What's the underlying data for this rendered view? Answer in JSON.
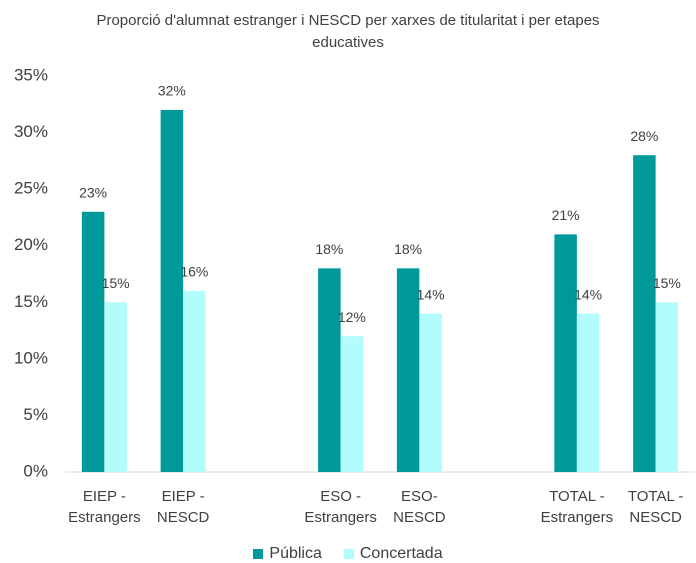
{
  "chart_data": {
    "type": "bar",
    "title": "Proporció d'alumnat estranger i NESCD per xarxes de titularitat i per etapes educatives",
    "categories": [
      "EIEP -\nEstrangers",
      "EIEP -\nNESCD",
      null,
      "ESO -\nEstrangers",
      "ESO-\nNESCD",
      null,
      "TOTAL -\nEstrangers",
      "TOTAL -\nNESCD"
    ],
    "series": [
      {
        "name": "Pública",
        "color": "#009999",
        "values": [
          23,
          32,
          null,
          18,
          18,
          null,
          21,
          28
        ],
        "value_labels": [
          "23%",
          "32%",
          null,
          "18%",
          "18%",
          null,
          "21%",
          "28%"
        ]
      },
      {
        "name": "Concertada",
        "color": "#b3fcfc",
        "values": [
          15,
          16,
          null,
          12,
          14,
          null,
          14,
          15
        ],
        "value_labels": [
          "15%",
          "16%",
          null,
          "12%",
          "14%",
          null,
          "14%",
          "15%"
        ]
      }
    ],
    "ylim": [
      0,
      35
    ],
    "yticks": [
      {
        "value": 0,
        "label": "0%"
      },
      {
        "value": 5,
        "label": "5%"
      },
      {
        "value": 10,
        "label": "10%"
      },
      {
        "value": 15,
        "label": "15%"
      },
      {
        "value": 20,
        "label": "20%"
      },
      {
        "value": 25,
        "label": "25%"
      },
      {
        "value": 30,
        "label": "30%"
      },
      {
        "value": 35,
        "label": "35%"
      }
    ],
    "grid": false,
    "legend": "bottom"
  }
}
